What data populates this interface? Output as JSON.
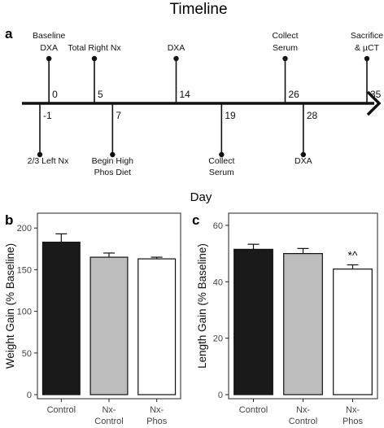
{
  "figure": {
    "title": "Timeline",
    "panel_labels": {
      "a": "a",
      "b": "b",
      "c": "c"
    },
    "timeline_xlabel": "Day"
  },
  "timeline": {
    "ticks": [
      {
        "day": -1,
        "label": "-1",
        "position": "below",
        "event": [
          "2/3 Left Nx"
        ]
      },
      {
        "day": 0,
        "label": "0",
        "position": "above",
        "event": [
          "Baseline",
          "DXA"
        ]
      },
      {
        "day": 5,
        "label": "5",
        "position": "above",
        "event": [
          "Total Right Nx"
        ]
      },
      {
        "day": 7,
        "label": "7",
        "position": "below",
        "event": [
          "Begin High",
          "Phos Diet"
        ]
      },
      {
        "day": 14,
        "label": "14",
        "position": "above",
        "event": [
          "DXA"
        ]
      },
      {
        "day": 19,
        "label": "19",
        "position": "below",
        "event": [
          "Collect",
          "Serum"
        ]
      },
      {
        "day": 26,
        "label": "26",
        "position": "above",
        "event": [
          "Collect",
          "Serum"
        ]
      },
      {
        "day": 28,
        "label": "28",
        "position": "below",
        "event": [
          "DXA"
        ]
      },
      {
        "day": 35,
        "label": "35",
        "position": "above",
        "event": [
          "Sacrifice",
          "& µCT"
        ]
      }
    ]
  },
  "chart_data": [
    {
      "type": "bar",
      "panel": "b",
      "ylabel": "Weight Gain (% Baseline)",
      "ylim": [
        0,
        210
      ],
      "yticks": [
        0,
        50,
        100,
        150,
        200
      ],
      "categories": [
        [
          "Control"
        ],
        [
          "Nx-",
          "Control"
        ],
        [
          "Nx-",
          "Phos"
        ]
      ],
      "values": [
        183,
        165,
        163
      ],
      "errors": [
        10,
        5,
        2
      ],
      "colors": [
        "#1a1a1a",
        "#bdbdbd",
        "#ffffff"
      ],
      "annotations": [
        "",
        "",
        ""
      ]
    },
    {
      "type": "bar",
      "panel": "c",
      "ylabel": "Length Gain (% Baseline)",
      "ylim": [
        0,
        62
      ],
      "yticks": [
        0,
        20,
        40,
        60
      ],
      "categories": [
        [
          "Control"
        ],
        [
          "Nx-",
          "Control"
        ],
        [
          "Nx-",
          "Phos"
        ]
      ],
      "values": [
        51.5,
        50,
        44.5
      ],
      "errors": [
        1.8,
        1.8,
        1.5
      ],
      "colors": [
        "#1a1a1a",
        "#bdbdbd",
        "#ffffff"
      ],
      "annotations": [
        "",
        "",
        "*^"
      ]
    }
  ]
}
